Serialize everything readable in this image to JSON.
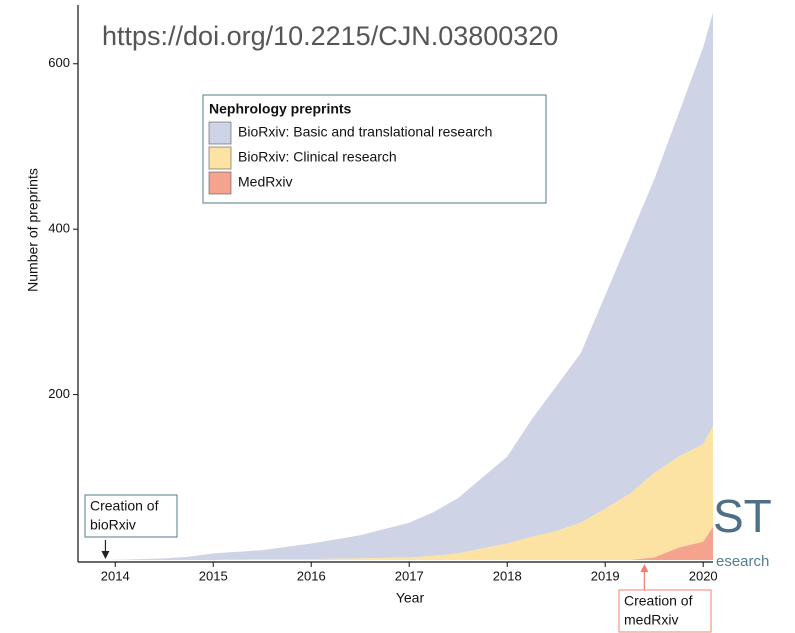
{
  "chart_data": {
    "type": "stacked_area",
    "watermark": "https://doi.org/10.2215/CJN.03800320",
    "logo_fragments": [
      "ST",
      "esearch"
    ],
    "x_label": "Year",
    "y_label": "Number of preprints",
    "legend_title": "Nephrology preprints",
    "x": [
      2013.9,
      2014.25,
      2014.5,
      2014.75,
      2015,
      2015.5,
      2016,
      2016.5,
      2017,
      2017.25,
      2017.5,
      2017.75,
      2018,
      2018.25,
      2018.5,
      2018.75,
      2019,
      2019.25,
      2019.5,
      2019.75,
      2020,
      2020.1
    ],
    "series": [
      {
        "name": "MedRxiv",
        "color": "#f4a48e",
        "values": [
          0,
          0,
          0,
          0,
          0,
          0,
          0,
          0,
          0,
          0,
          0,
          0,
          0,
          0,
          0,
          0,
          0,
          0,
          3,
          15,
          22,
          40
        ]
      },
      {
        "name": "BioRxiv: Clinical research",
        "color": "#fde3a3",
        "values": [
          0,
          0,
          0,
          0,
          0,
          1,
          1,
          2,
          3,
          5,
          8,
          14,
          20,
          28,
          35,
          45,
          62,
          80,
          102,
          110,
          118,
          122
        ]
      },
      {
        "name": "BioRxiv: Basic and translational research",
        "color": "#cfd3e6",
        "values": [
          0,
          1,
          2,
          4,
          8,
          11,
          19,
          28,
          42,
          53,
          67,
          86,
          105,
          142,
          175,
          205,
          258,
          310,
          355,
          415,
          480,
          500
        ]
      }
    ],
    "legend_order": [
      2,
      1,
      0
    ],
    "annotations": [
      {
        "x": 2013.9,
        "label": "Creation of bioRxiv",
        "lines": [
          "Creation of",
          "bioRxiv"
        ],
        "color": "#222222",
        "box": "#4f7f86"
      },
      {
        "x": 2019.4,
        "label": "Creation of medRxiv",
        "lines": [
          "Creation of",
          "medRxiv"
        ],
        "color": "#f08070",
        "box": "#f08070"
      }
    ],
    "xlim": [
      2013.62,
      2020.1
    ],
    "ylim": [
      0,
      665
    ],
    "xticks": [
      2014,
      2015,
      2016,
      2017,
      2018,
      2019,
      2020
    ],
    "yticks": [
      200,
      400,
      600
    ],
    "grid": false
  }
}
